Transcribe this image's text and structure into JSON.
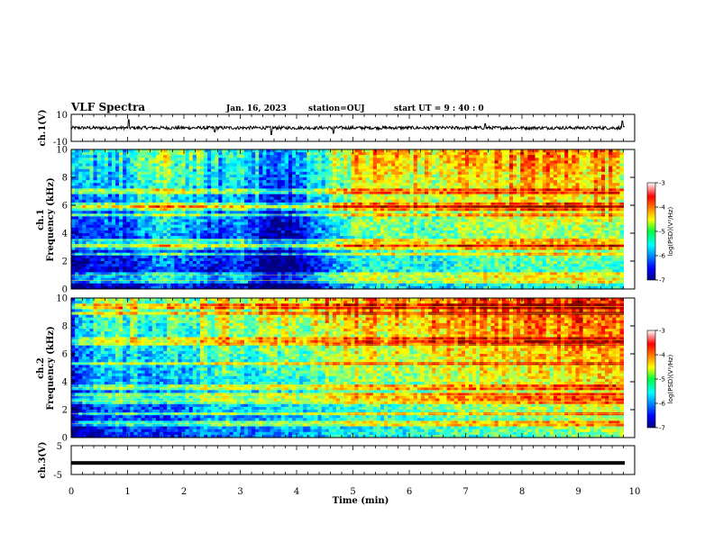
{
  "header": {
    "title": "VLF Spectra",
    "date": "Jan. 16, 2023",
    "station": "station=OUJ",
    "start": "start  UT =   9 : 40 : 0"
  },
  "chart_data": [
    {
      "type": "line",
      "panel": "ch1-waveform",
      "ylabel": "ch.1(V)",
      "ylim": [
        -10,
        10
      ],
      "yticks": [
        "10",
        "-10"
      ],
      "xlim": [
        0,
        10
      ],
      "baseline": 0,
      "noise_amplitude": 1.2,
      "spikes": [
        [
          1.02,
          6
        ],
        [
          2.55,
          -3
        ],
        [
          3.55,
          -5
        ],
        [
          4.65,
          -4
        ],
        [
          7.35,
          3
        ],
        [
          9.78,
          5
        ]
      ]
    },
    {
      "type": "heatmap",
      "panel": "ch1-spectrogram",
      "ylabel": "ch.1\nFrequency (kHz)",
      "ylim": [
        0,
        10
      ],
      "yticks": [
        "0",
        "2",
        "4",
        "6",
        "8",
        "10"
      ],
      "xlim": [
        0,
        9.8
      ],
      "colorbar": {
        "label": "log(PSD)(V²/Hz)",
        "range": [
          -7,
          -3
        ],
        "ticks": [
          "-3",
          "-4",
          "-5",
          "-6",
          "-7"
        ]
      },
      "level_profile": [
        [
          0,
          -6.3
        ],
        [
          0.5,
          -5.8
        ],
        [
          1,
          -6.0
        ],
        [
          1.5,
          -5.3
        ],
        [
          2,
          -5.5
        ],
        [
          2.5,
          -6.0
        ],
        [
          3,
          -5.6
        ],
        [
          3.5,
          -6.6
        ],
        [
          4,
          -6.3
        ],
        [
          4.5,
          -5.4
        ],
        [
          5,
          -4.8
        ],
        [
          5.5,
          -4.7
        ],
        [
          6,
          -4.8
        ],
        [
          6.5,
          -4.9
        ],
        [
          7,
          -4.6
        ],
        [
          7.5,
          -4.5
        ],
        [
          8,
          -4.5
        ],
        [
          8.5,
          -4.5
        ],
        [
          9,
          -4.5
        ],
        [
          9.5,
          -4.5
        ],
        [
          10,
          -4.5
        ]
      ],
      "lines_khz": [
        0.6,
        1.0,
        2.5,
        3.0,
        3.2,
        3.5,
        5.3,
        5.8,
        6.0,
        7.0
      ]
    },
    {
      "type": "heatmap",
      "panel": "ch2-spectrogram",
      "ylabel": "ch.2\nFrequency (kHz)",
      "ylim": [
        0,
        10
      ],
      "yticks": [
        "0",
        "2",
        "4",
        "6",
        "8",
        "10"
      ],
      "xlim": [
        0,
        9.8
      ],
      "colorbar": {
        "label": "log(PSD)(V²/Hz)",
        "range": [
          -7,
          -3
        ],
        "ticks": [
          "-3",
          "-4",
          "-5",
          "-6",
          "-7"
        ]
      },
      "level_profile": [
        [
          0,
          -6.2
        ],
        [
          0.5,
          -5.6
        ],
        [
          1,
          -5.4
        ],
        [
          1.5,
          -5.6
        ],
        [
          2,
          -5.4
        ],
        [
          2.5,
          -5.0
        ],
        [
          3,
          -5.2
        ],
        [
          3.5,
          -5.1
        ],
        [
          4,
          -5.0
        ],
        [
          4.5,
          -4.8
        ],
        [
          5,
          -4.6
        ],
        [
          5.5,
          -4.6
        ],
        [
          6,
          -4.6
        ],
        [
          6.5,
          -4.4
        ],
        [
          7,
          -4.4
        ],
        [
          7.5,
          -4.3
        ],
        [
          8,
          -4.3
        ],
        [
          8.5,
          -4.2
        ],
        [
          9,
          -4.1
        ],
        [
          9.5,
          -4.0
        ],
        [
          10,
          -4.0
        ]
      ],
      "lines_khz": [
        1.0,
        1.7,
        2.6,
        3.0,
        3.6,
        5.3,
        6.7,
        7.0,
        8.9,
        9.4
      ]
    },
    {
      "type": "line",
      "panel": "ch3-waveform",
      "ylabel": "ch.3(V)",
      "xlabel": "Time (min)",
      "ylim": [
        -5,
        5
      ],
      "yticks": [
        "5",
        "0",
        "-5"
      ],
      "xlim": [
        0,
        10
      ],
      "xticks": [
        "0",
        "1",
        "2",
        "3",
        "4",
        "5",
        "6",
        "7",
        "8",
        "9",
        "10"
      ],
      "value": -1
    }
  ]
}
